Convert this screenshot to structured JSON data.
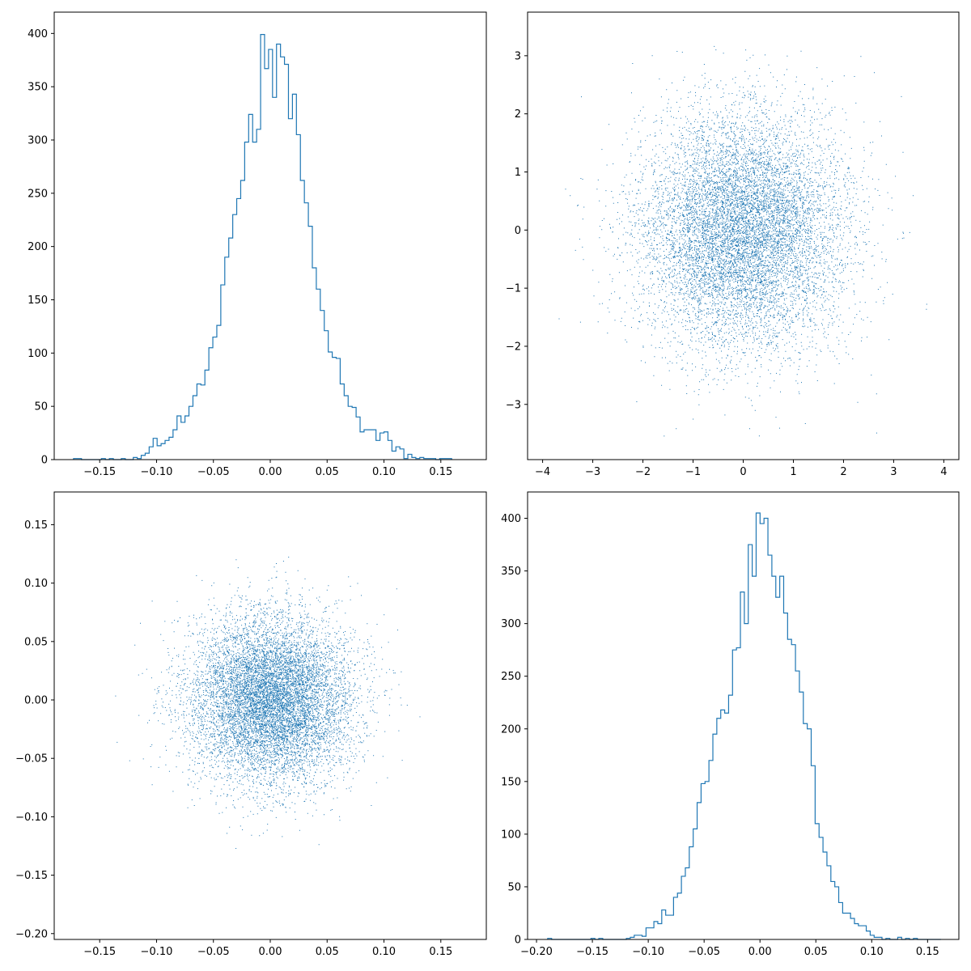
{
  "figure": {
    "background": "#ffffff",
    "series_color": "#1f77b4"
  },
  "chart_data": [
    {
      "panel": "top-left",
      "type": "histogram",
      "style": "step",
      "title": "",
      "xlabel": "",
      "ylabel": "",
      "xlim": [
        -0.19,
        0.19
      ],
      "ylim": [
        0,
        420
      ],
      "xticks": [
        -0.15,
        -0.1,
        -0.05,
        0.0,
        0.05,
        0.1,
        0.15
      ],
      "xtick_labels": [
        "−0.15",
        "−0.10",
        "−0.05",
        "0.00",
        "0.05",
        "0.10",
        "0.15"
      ],
      "yticks": [
        0,
        50,
        100,
        150,
        200,
        250,
        300,
        350,
        400
      ],
      "ytick_labels": [
        "0",
        "50",
        "100",
        "150",
        "200",
        "250",
        "300",
        "350",
        "400"
      ],
      "bin_start": -0.173,
      "bin_width": 0.0035,
      "counts": [
        1,
        1,
        0,
        0,
        0,
        0,
        0,
        1,
        0,
        1,
        0,
        0,
        1,
        0,
        0,
        2,
        1,
        4,
        6,
        12,
        20,
        13,
        15,
        18,
        21,
        28,
        41,
        35,
        41,
        50,
        60,
        71,
        70,
        84,
        105,
        115,
        126,
        164,
        190,
        208,
        230,
        245,
        262,
        298,
        324,
        298,
        310,
        399,
        367,
        385,
        340,
        390,
        378,
        371,
        320,
        343,
        305,
        262,
        241,
        219,
        180,
        160,
        140,
        121,
        101,
        96,
        95,
        71,
        60,
        50,
        49,
        40,
        26,
        28,
        28,
        28,
        18,
        25,
        26,
        18,
        8,
        12,
        10,
        1,
        5,
        2,
        1,
        2,
        1,
        1,
        1,
        0,
        1,
        1,
        1
      ]
    },
    {
      "panel": "top-right",
      "type": "scatter",
      "marker": "pixel",
      "title": "",
      "xlabel": "",
      "ylabel": "",
      "xlim": [
        -4.3,
        4.3
      ],
      "ylim": [
        -3.95,
        3.75
      ],
      "xticks": [
        -4,
        -3,
        -2,
        -1,
        0,
        1,
        2,
        3,
        4
      ],
      "xtick_labels": [
        "−4",
        "−3",
        "−2",
        "−1",
        "0",
        "1",
        "2",
        "3",
        "4"
      ],
      "yticks": [
        -3,
        -2,
        -1,
        0,
        1,
        2,
        3
      ],
      "ytick_labels": [
        "−3",
        "−2",
        "−1",
        "0",
        "1",
        "2",
        "3"
      ],
      "n_points": 10000,
      "x_distribution": {
        "mean": 0.0,
        "std": 1.0
      },
      "y_distribution": {
        "mean": 0.0,
        "std": 1.0
      },
      "x_extent": [
        -4.0,
        3.9
      ],
      "y_extent": [
        -3.6,
        3.35
      ]
    },
    {
      "panel": "bottom-left",
      "type": "scatter",
      "marker": "pixel",
      "title": "",
      "xlabel": "",
      "ylabel": "",
      "xlim": [
        -0.19,
        0.19
      ],
      "ylim": [
        -0.205,
        0.178
      ],
      "xticks": [
        -0.15,
        -0.1,
        -0.05,
        0.0,
        0.05,
        0.1,
        0.15
      ],
      "xtick_labels": [
        "−0.15",
        "−0.10",
        "−0.05",
        "0.00",
        "0.05",
        "0.10",
        "0.15"
      ],
      "yticks": [
        -0.2,
        -0.15,
        -0.1,
        -0.05,
        0.0,
        0.05,
        0.1,
        0.15
      ],
      "ytick_labels": [
        "−0.20",
        "−0.15",
        "−0.10",
        "−0.05",
        "0.00",
        "0.05",
        "0.10",
        "0.15"
      ],
      "n_points": 10000,
      "x_distribution": {
        "mean": 0.0,
        "std": 0.035
      },
      "y_distribution": {
        "mean": 0.0,
        "std": 0.035
      },
      "x_extent": [
        -0.175,
        0.175
      ],
      "y_extent": [
        -0.19,
        0.162
      ]
    },
    {
      "panel": "bottom-right",
      "type": "histogram",
      "style": "step",
      "title": "",
      "xlabel": "",
      "ylabel": "",
      "xlim": [
        -0.208,
        0.178
      ],
      "ylim": [
        0,
        425
      ],
      "xticks": [
        -0.2,
        -0.15,
        -0.1,
        -0.05,
        0.0,
        0.05,
        0.1,
        0.15
      ],
      "xtick_labels": [
        "−0.20",
        "−0.15",
        "−0.10",
        "−0.05",
        "0.00",
        "0.05",
        "0.10",
        "0.15"
      ],
      "yticks": [
        0,
        50,
        100,
        150,
        200,
        250,
        300,
        350,
        400
      ],
      "ytick_labels": [
        "0",
        "50",
        "100",
        "150",
        "200",
        "250",
        "300",
        "350",
        "400"
      ],
      "bin_start": -0.19,
      "bin_width": 0.00352,
      "counts": [
        1,
        0,
        0,
        0,
        0,
        0,
        0,
        0,
        0,
        0,
        0,
        1,
        0,
        1,
        0,
        0,
        0,
        0,
        0,
        0,
        1,
        2,
        4,
        4,
        3,
        11,
        11,
        17,
        15,
        28,
        23,
        23,
        40,
        44,
        60,
        68,
        88,
        105,
        130,
        148,
        150,
        170,
        195,
        210,
        218,
        215,
        232,
        275,
        277,
        330,
        300,
        375,
        345,
        405,
        395,
        400,
        365,
        345,
        325,
        345,
        310,
        285,
        280,
        255,
        235,
        205,
        200,
        165,
        110,
        97,
        83,
        70,
        55,
        50,
        35,
        25,
        25,
        20,
        15,
        13,
        13,
        8,
        4,
        2,
        2,
        0,
        1,
        0,
        0,
        2,
        0,
        1,
        0,
        1,
        0,
        0,
        0,
        0,
        0,
        0
      ]
    }
  ]
}
